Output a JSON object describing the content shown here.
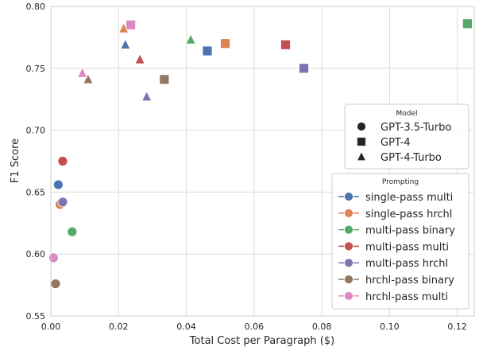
{
  "chart_data": {
    "type": "scatter",
    "title": "",
    "xlabel": "Total Cost per Paragraph ($)",
    "ylabel": "F1 Score",
    "xlim": [
      0.0,
      0.125
    ],
    "ylim": [
      0.55,
      0.8
    ],
    "x_ticks": [
      0.0,
      0.02,
      0.04,
      0.06,
      0.08,
      0.1,
      0.12
    ],
    "x_tick_labels": [
      "0.00",
      "0.02",
      "0.04",
      "0.06",
      "0.08",
      "0.10",
      "0.12"
    ],
    "y_ticks": [
      0.55,
      0.6,
      0.65,
      0.7,
      0.75,
      0.8
    ],
    "y_tick_labels": [
      "0.55",
      "0.60",
      "0.65",
      "0.70",
      "0.75",
      "0.80"
    ],
    "grid": true,
    "model_legend": {
      "title": "Model",
      "placement": "right",
      "entries": [
        {
          "label": "GPT-3.5-Turbo",
          "marker": "circle"
        },
        {
          "label": "GPT-4",
          "marker": "square"
        },
        {
          "label": "GPT-4-Turbo",
          "marker": "triangle"
        }
      ]
    },
    "prompting_legend": {
      "title": "Prompting",
      "placement": "lower-right",
      "entries": [
        {
          "label": "single-pass multi",
          "color": "#4c72b0"
        },
        {
          "label": "single-pass hrchl",
          "color": "#dd8452"
        },
        {
          "label": "multi-pass binary",
          "color": "#55a868"
        },
        {
          "label": "multi-pass multi",
          "color": "#c44e52"
        },
        {
          "label": "multi-pass hrchl",
          "color": "#8172b3"
        },
        {
          "label": "hrchl-pass binary",
          "color": "#937860"
        },
        {
          "label": "hrchl-pass multi",
          "color": "#da8bc3"
        }
      ]
    },
    "series": [
      {
        "model": "GPT-3.5-Turbo",
        "prompting": "single-pass multi",
        "marker": "circle",
        "x": 0.0022,
        "y": 0.656
      },
      {
        "model": "GPT-3.5-Turbo",
        "prompting": "single-pass hrchl",
        "marker": "circle",
        "x": 0.0027,
        "y": 0.64
      },
      {
        "model": "GPT-3.5-Turbo",
        "prompting": "multi-pass binary",
        "marker": "circle",
        "x": 0.0063,
        "y": 0.618
      },
      {
        "model": "GPT-3.5-Turbo",
        "prompting": "multi-pass multi",
        "marker": "circle",
        "x": 0.0035,
        "y": 0.675
      },
      {
        "model": "GPT-3.5-Turbo",
        "prompting": "multi-pass hrchl",
        "marker": "circle",
        "x": 0.0035,
        "y": 0.642
      },
      {
        "model": "GPT-3.5-Turbo",
        "prompting": "hrchl-pass binary",
        "marker": "circle",
        "x": 0.0014,
        "y": 0.576
      },
      {
        "model": "GPT-3.5-Turbo",
        "prompting": "hrchl-pass multi",
        "marker": "circle",
        "x": 0.0008,
        "y": 0.597
      },
      {
        "model": "GPT-4",
        "prompting": "single-pass multi",
        "marker": "square",
        "x": 0.0462,
        "y": 0.764
      },
      {
        "model": "GPT-4",
        "prompting": "single-pass hrchl",
        "marker": "square",
        "x": 0.0515,
        "y": 0.77
      },
      {
        "model": "GPT-4",
        "prompting": "multi-pass binary",
        "marker": "square",
        "x": 0.123,
        "y": 0.786
      },
      {
        "model": "GPT-4",
        "prompting": "multi-pass multi",
        "marker": "square",
        "x": 0.0693,
        "y": 0.769
      },
      {
        "model": "GPT-4",
        "prompting": "multi-pass hrchl",
        "marker": "square",
        "x": 0.0747,
        "y": 0.75
      },
      {
        "model": "GPT-4",
        "prompting": "hrchl-pass binary",
        "marker": "square",
        "x": 0.0335,
        "y": 0.741
      },
      {
        "model": "GPT-4",
        "prompting": "hrchl-pass multi",
        "marker": "square",
        "x": 0.0236,
        "y": 0.785
      },
      {
        "model": "GPT-4-Turbo",
        "prompting": "single-pass multi",
        "marker": "triangle",
        "x": 0.022,
        "y": 0.769
      },
      {
        "model": "GPT-4-Turbo",
        "prompting": "single-pass hrchl",
        "marker": "triangle",
        "x": 0.0215,
        "y": 0.782
      },
      {
        "model": "GPT-4-Turbo",
        "prompting": "multi-pass binary",
        "marker": "triangle",
        "x": 0.0413,
        "y": 0.773
      },
      {
        "model": "GPT-4-Turbo",
        "prompting": "multi-pass multi",
        "marker": "triangle",
        "x": 0.0263,
        "y": 0.757
      },
      {
        "model": "GPT-4-Turbo",
        "prompting": "multi-pass hrchl",
        "marker": "triangle",
        "x": 0.0283,
        "y": 0.727
      },
      {
        "model": "GPT-4-Turbo",
        "prompting": "hrchl-pass binary",
        "marker": "triangle",
        "x": 0.011,
        "y": 0.741
      },
      {
        "model": "GPT-4-Turbo",
        "prompting": "hrchl-pass multi",
        "marker": "triangle",
        "x": 0.0093,
        "y": 0.746
      }
    ]
  }
}
